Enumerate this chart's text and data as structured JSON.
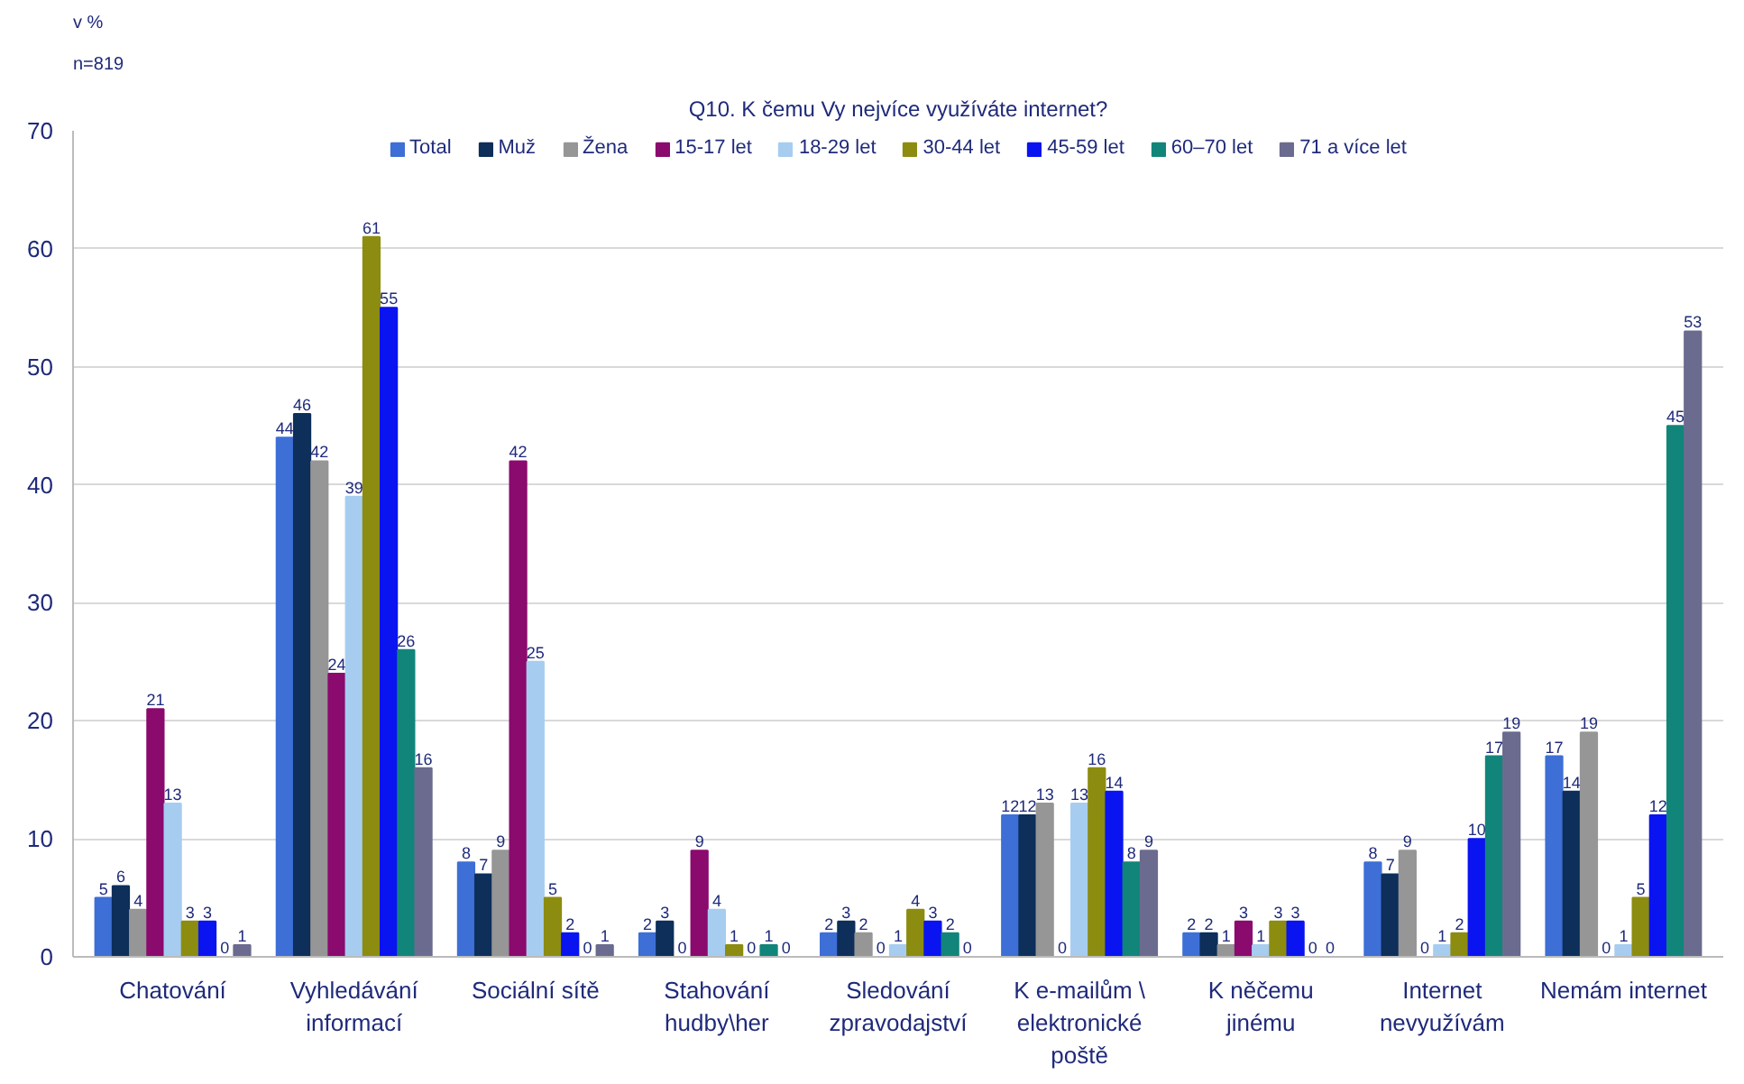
{
  "chart_data": {
    "type": "bar",
    "title": "Q10. K čemu Vy nejvíce využíváte internet?",
    "annotations": [
      "v %",
      "n=819"
    ],
    "categories": [
      "Chatování",
      "Vyhledávání informací",
      "Sociální sítě",
      "Stahování hudby\\her",
      "Sledování zpravodajství",
      "K e-mailům \\ elektronické poště",
      "K něčemu jinému",
      "Internet nevyužívám",
      "Nemám internet"
    ],
    "series": [
      {
        "name": "Total",
        "color": "#3d6fd6",
        "values": [
          5,
          44,
          8,
          2,
          2,
          12,
          2,
          8,
          17
        ]
      },
      {
        "name": "Muž",
        "color": "#0d2f5a",
        "values": [
          6,
          46,
          7,
          3,
          3,
          12,
          2,
          7,
          14
        ]
      },
      {
        "name": "Žena",
        "color": "#969696",
        "values": [
          4,
          42,
          9,
          0,
          2,
          13,
          1,
          9,
          19
        ]
      },
      {
        "name": "15-17 let",
        "color": "#8b0a6e",
        "values": [
          21,
          24,
          42,
          9,
          0,
          0,
          3,
          0,
          0
        ]
      },
      {
        "name": "18-29 let",
        "color": "#a6cdf0",
        "values": [
          13,
          39,
          25,
          4,
          1,
          13,
          1,
          1,
          1
        ]
      },
      {
        "name": "30-44 let",
        "color": "#8c8c10",
        "values": [
          3,
          61,
          5,
          1,
          4,
          16,
          3,
          2,
          5
        ]
      },
      {
        "name": "45-59 let",
        "color": "#0a14f0",
        "values": [
          3,
          55,
          2,
          0,
          3,
          14,
          3,
          10,
          12
        ]
      },
      {
        "name": "60–70 let",
        "color": "#12857a",
        "values": [
          0,
          26,
          0,
          1,
          2,
          8,
          0,
          17,
          45
        ]
      },
      {
        "name": "71 a více let",
        "color": "#6b6b8f",
        "values": [
          1,
          16,
          1,
          0,
          0,
          9,
          0,
          19,
          53
        ]
      }
    ],
    "ylim": [
      0,
      70
    ],
    "yticks": [
      0,
      10,
      20,
      30,
      40,
      50,
      60,
      70
    ],
    "grid": "y",
    "legend": "top",
    "data_labels": true
  }
}
